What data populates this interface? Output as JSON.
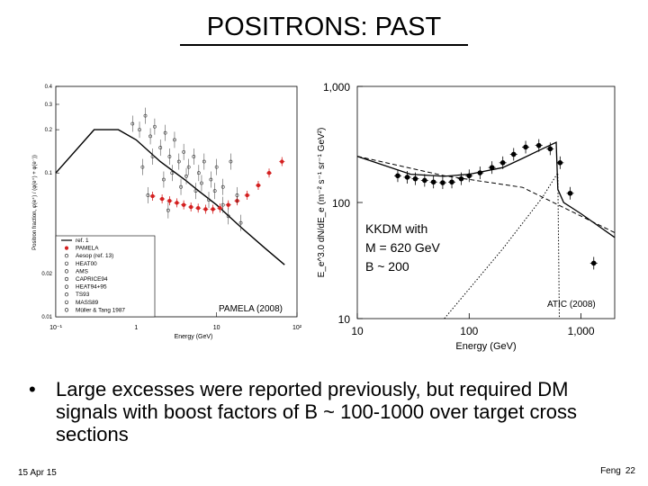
{
  "slide": {
    "title": "POSITRONS: PAST",
    "bullet_marker": "•",
    "bullet": "Large excesses were reported previously, but required DM signals with boost factors of B ~ 100-1000 over target cross sections",
    "date": "15 Apr 15",
    "author": "Feng",
    "page": "22"
  },
  "left_plot": {
    "ylabel": "Positron fraction, φ(e⁺) / (φ(e⁺) + φ(e⁻))",
    "xlabel": "Energy (GeV)",
    "y_ticks": [
      "0.4",
      "0.3",
      "0.2",
      "0.1",
      "0.02",
      "0.01"
    ],
    "x_ticks": [
      "10⁻¹",
      "1",
      "10",
      "10²"
    ],
    "legend": [
      "ref. 1",
      "PAMELA",
      "Aesop (ref. 13)",
      "HEAT00",
      "AMS",
      "CAPRICE94",
      "HEAT94+95",
      "TS93",
      "MASS89",
      "Müller & Tang 1987"
    ],
    "caption": "PAMELA (2008)",
    "colors": {
      "pamela": "#d42020",
      "other": "#333333"
    }
  },
  "right_plot": {
    "ylabel": "E_e^3.0 dN/dE_e (m⁻² s⁻¹ sr⁻¹ GeV²)",
    "xlabel": "Energy (GeV)",
    "y_ticks": [
      "1,000",
      "100",
      "10"
    ],
    "x_ticks": [
      "10",
      "100",
      "1,000"
    ],
    "annotation": [
      "KKDM with",
      "M = 620 GeV",
      "B ~ 200"
    ],
    "caption": "ATIC (2008)"
  },
  "chart_data": [
    {
      "type": "scatter",
      "xlabel": "Energy (GeV)",
      "ylabel": "Positron fraction, φ(e⁺) / (φ(e⁺) + φ(e⁻))",
      "x_scale": "log",
      "y_scale": "log",
      "xlim": [
        0.1,
        100
      ],
      "ylim": [
        0.01,
        0.4
      ],
      "series": [
        {
          "name": "PAMELA",
          "x": [
            1.6,
            2.1,
            2.6,
            3.2,
            3.9,
            4.8,
            5.9,
            7.3,
            9,
            11,
            14,
            18,
            24,
            33,
            45,
            65
          ],
          "y": [
            0.069,
            0.066,
            0.064,
            0.062,
            0.06,
            0.058,
            0.057,
            0.056,
            0.056,
            0.057,
            0.06,
            0.064,
            0.07,
            0.082,
            0.1,
            0.12
          ]
        },
        {
          "name": "ref. 1",
          "x": [
            0.1,
            0.3,
            0.6,
            1,
            2,
            4,
            6,
            10,
            20,
            40,
            70
          ],
          "y": [
            0.1,
            0.2,
            0.2,
            0.17,
            0.12,
            0.09,
            0.075,
            0.06,
            0.042,
            0.03,
            0.023
          ]
        }
      ]
    },
    {
      "type": "scatter",
      "xlabel": "Energy (GeV)",
      "ylabel": "E_e^3.0 dN/dE_e (m⁻² s⁻¹ sr⁻¹ GeV²)",
      "x_scale": "log",
      "y_scale": "log",
      "xlim": [
        10,
        2000
      ],
      "ylim": [
        10,
        1000
      ],
      "series": [
        {
          "name": "ATIC",
          "x": [
            23,
            28,
            33,
            40,
            48,
            58,
            70,
            85,
            100,
            125,
            160,
            200,
            250,
            320,
            420,
            530,
            650,
            800,
            1300
          ],
          "y": [
            170,
            165,
            160,
            155,
            150,
            148,
            150,
            160,
            170,
            180,
            200,
            220,
            260,
            300,
            310,
            290,
            220,
            120,
            30
          ]
        },
        {
          "name": "KKDM",
          "x": [
            10,
            30,
            60,
            100,
            200,
            300,
            450,
            600,
            620,
            700,
            1000,
            2000
          ],
          "y": [
            250,
            175,
            168,
            175,
            200,
            240,
            290,
            330,
            130,
            100,
            80,
            50
          ]
        }
      ]
    }
  ]
}
